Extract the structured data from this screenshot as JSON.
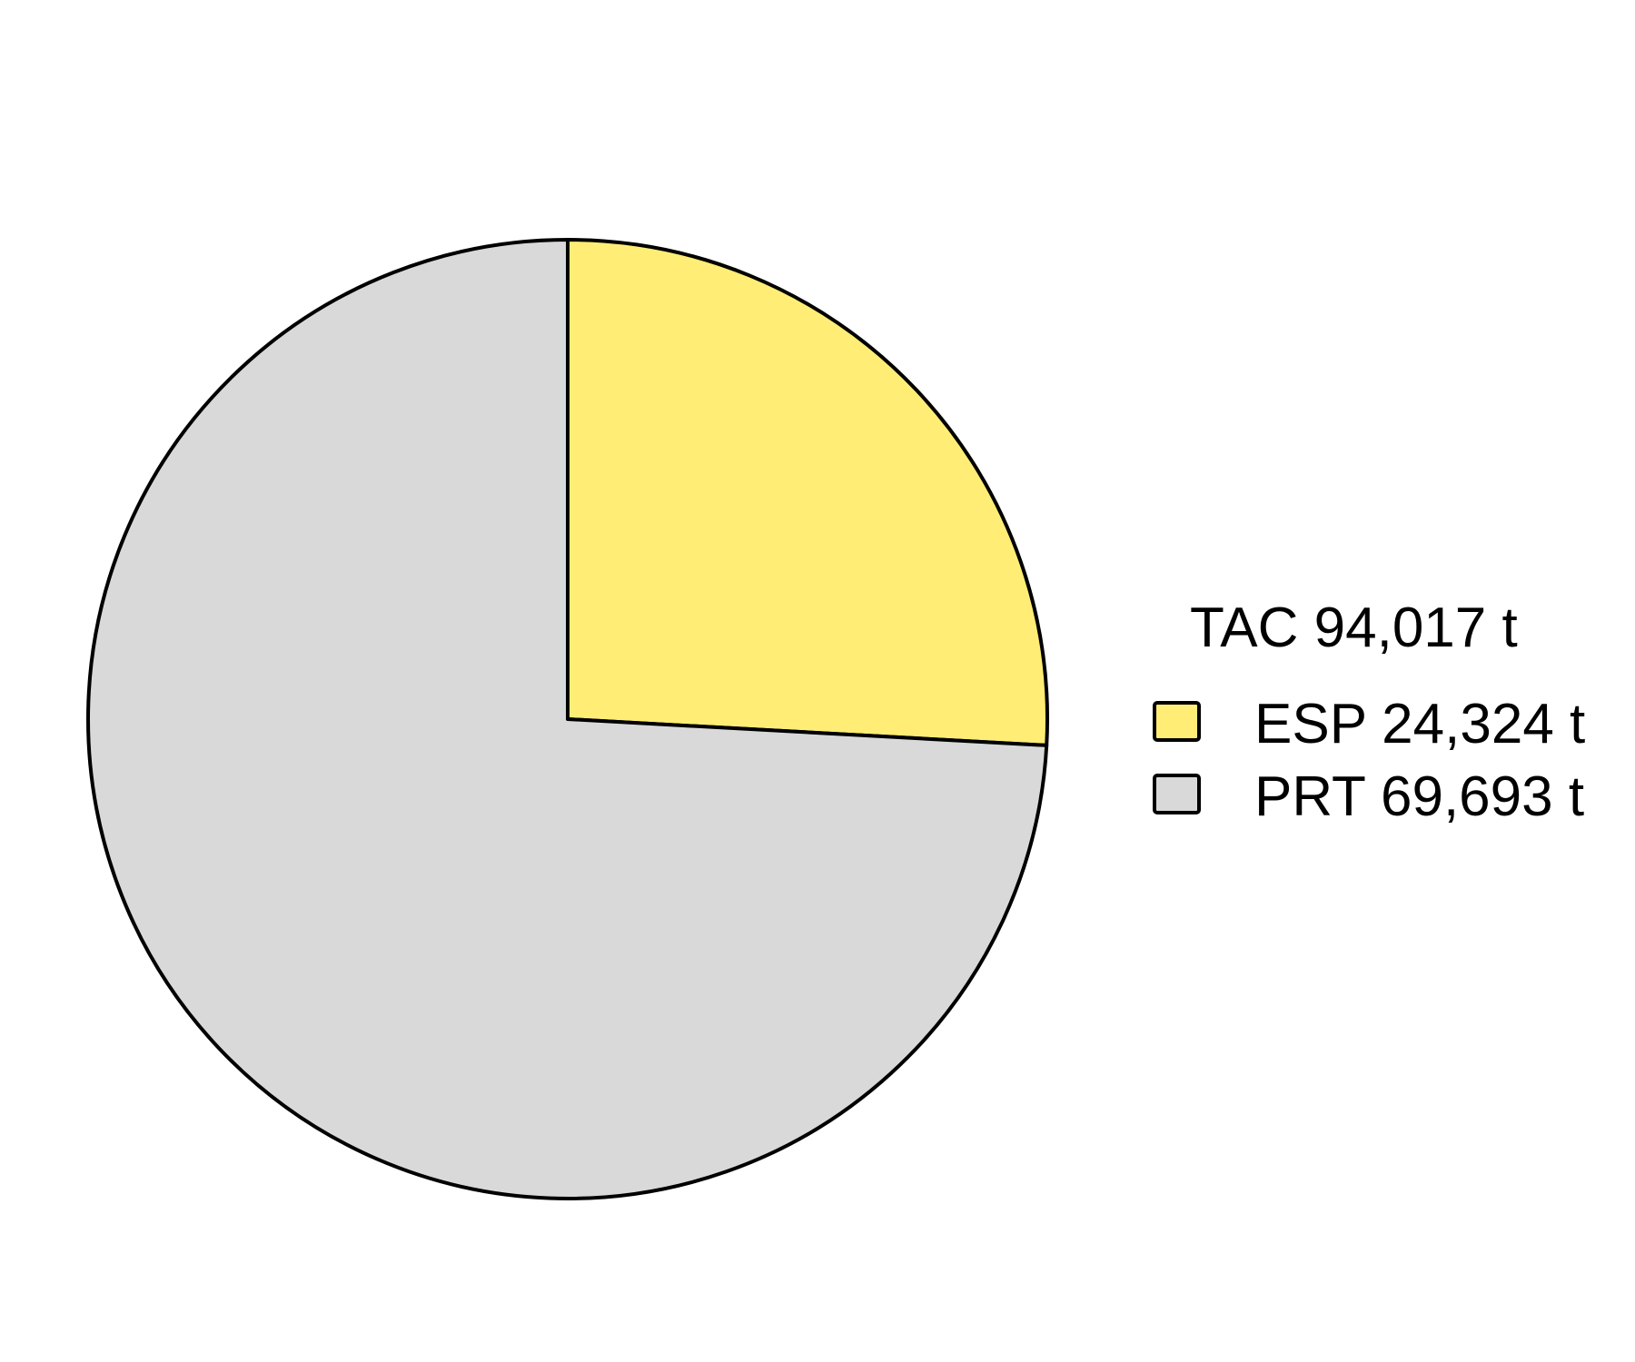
{
  "chart_data": {
    "type": "pie",
    "legend_title": "TAC 94,017 t",
    "legend_position": "right",
    "slices": [
      {
        "label": "ESP 24,324 t",
        "value": 24324,
        "color": "#FFED75"
      },
      {
        "label": "PRT 69,693 t",
        "value": 69693,
        "color": "#D9D9D9"
      }
    ],
    "start_angle": "top",
    "direction": "clockwise",
    "outline_color": "#000000"
  }
}
